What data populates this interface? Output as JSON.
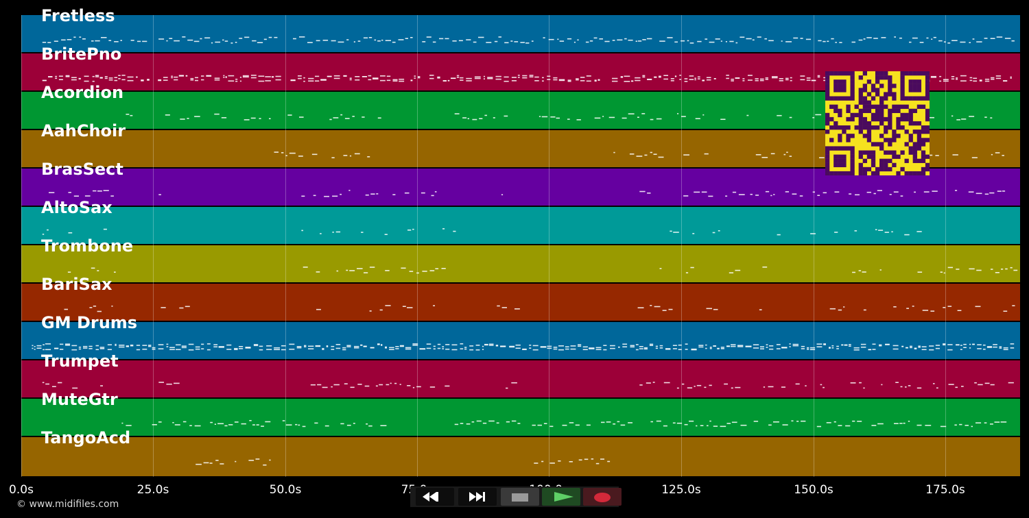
{
  "tracks": [
    {
      "name": "Fretless",
      "color": "#00679a"
    },
    {
      "name": "BritePno",
      "color": "#9c0038"
    },
    {
      "name": "Acordion",
      "color": "#009732"
    },
    {
      "name": "AahChoir",
      "color": "#966500"
    },
    {
      "name": "BrasSect",
      "color": "#6500a0"
    },
    {
      "name": "AltoSax",
      "color": "#009a98"
    },
    {
      "name": "Trombone",
      "color": "#999a00"
    },
    {
      "name": "BariSax",
      "color": "#962800"
    },
    {
      "name": "GM Drums",
      "color": "#00679a"
    },
    {
      "name": "Trumpet",
      "color": "#9c0038"
    },
    {
      "name": "MuteGtr",
      "color": "#009732"
    },
    {
      "name": "TangoAcd",
      "color": "#966500"
    }
  ],
  "timeline": {
    "unit": "s",
    "max_seconds": 189,
    "ticks": [
      "0.0s",
      "25.0s",
      "50.0s",
      "75.0s",
      "100.0s",
      "125.0s",
      "150.0s",
      "175.0s"
    ]
  },
  "transport": {
    "rewind_icon": "rewind-icon",
    "fast_forward_icon": "fast-forward-icon",
    "stop_icon": "stop-icon",
    "play_icon": "play-icon",
    "record_icon": "record-icon"
  },
  "colors": {
    "background": "#000000",
    "qr_foreground": "#4a0a5e",
    "qr_background": "#f6e21f",
    "play_accent": "#4caf50",
    "record_accent": "#d3293a"
  },
  "copyright": "© www.midifiles.com"
}
